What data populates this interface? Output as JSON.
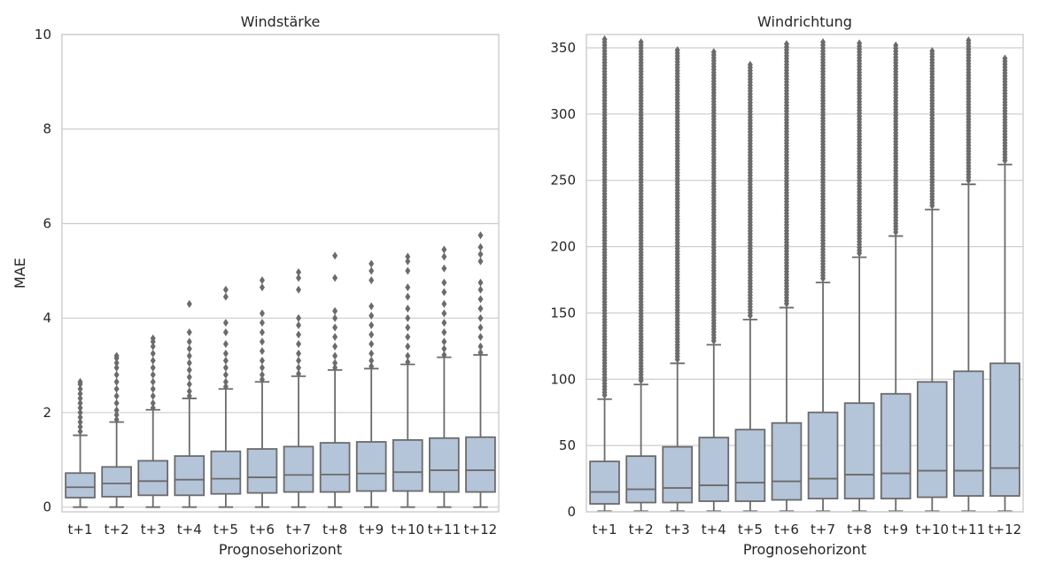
{
  "chart_data": [
    {
      "type": "box",
      "title": "Windstärke",
      "xlabel": "Prognosehorizont",
      "ylabel": "MAE",
      "ylim": [
        -0.1,
        10
      ],
      "yticks": [
        0,
        2,
        4,
        6,
        8,
        10
      ],
      "grid": "horizontal",
      "box_color": "#b4c4d9",
      "line_color": "#6b6b6b",
      "categories": [
        "t+1",
        "t+2",
        "t+3",
        "t+4",
        "t+5",
        "t+6",
        "t+7",
        "t+8",
        "t+9",
        "t+10",
        "t+11",
        "t+12"
      ],
      "boxes": [
        {
          "whislo": 0.0,
          "q1": 0.2,
          "med": 0.42,
          "q3": 0.72,
          "whishi": 1.52,
          "fliers": [
            1.6,
            1.7,
            1.8,
            1.9,
            2.0,
            2.1,
            2.2,
            2.3,
            2.4,
            2.5,
            2.6,
            2.65
          ]
        },
        {
          "whislo": 0.0,
          "q1": 0.22,
          "med": 0.5,
          "q3": 0.85,
          "whishi": 1.8,
          "fliers": [
            1.85,
            1.95,
            2.05,
            2.2,
            2.35,
            2.5,
            2.65,
            2.8,
            2.95,
            3.05,
            3.15,
            3.2
          ]
        },
        {
          "whislo": 0.0,
          "q1": 0.25,
          "med": 0.55,
          "q3": 0.98,
          "whishi": 2.06,
          "fliers": [
            2.1,
            2.2,
            2.35,
            2.5,
            2.65,
            2.8,
            2.95,
            3.1,
            3.25,
            3.4,
            3.5,
            3.57
          ]
        },
        {
          "whislo": 0.0,
          "q1": 0.25,
          "med": 0.58,
          "q3": 1.08,
          "whishi": 2.3,
          "fliers": [
            2.35,
            2.45,
            2.6,
            2.75,
            2.9,
            3.05,
            3.2,
            3.35,
            3.5,
            3.7,
            4.3
          ]
        },
        {
          "whislo": 0.0,
          "q1": 0.28,
          "med": 0.6,
          "q3": 1.18,
          "whishi": 2.5,
          "fliers": [
            2.55,
            2.65,
            2.8,
            2.95,
            3.1,
            3.25,
            3.45,
            3.7,
            3.9,
            4.45,
            4.6
          ]
        },
        {
          "whislo": 0.0,
          "q1": 0.3,
          "med": 0.63,
          "q3": 1.23,
          "whishi": 2.65,
          "fliers": [
            2.7,
            2.8,
            2.95,
            3.1,
            3.3,
            3.5,
            3.7,
            3.9,
            4.1,
            4.65,
            4.8
          ]
        },
        {
          "whislo": 0.0,
          "q1": 0.32,
          "med": 0.68,
          "q3": 1.28,
          "whishi": 2.77,
          "fliers": [
            2.82,
            2.95,
            3.1,
            3.25,
            3.45,
            3.65,
            3.85,
            4.0,
            4.6,
            4.85,
            4.97
          ]
        },
        {
          "whislo": 0.0,
          "q1": 0.32,
          "med": 0.69,
          "q3": 1.36,
          "whishi": 2.9,
          "fliers": [
            2.95,
            3.05,
            3.2,
            3.4,
            3.6,
            3.8,
            4.0,
            4.15,
            4.85,
            5.32
          ]
        },
        {
          "whislo": 0.0,
          "q1": 0.34,
          "med": 0.71,
          "q3": 1.38,
          "whishi": 2.93,
          "fliers": [
            2.98,
            3.1,
            3.25,
            3.45,
            3.65,
            3.85,
            4.05,
            4.25,
            4.8,
            5.0,
            5.15
          ]
        },
        {
          "whislo": 0.0,
          "q1": 0.34,
          "med": 0.74,
          "q3": 1.42,
          "whishi": 3.02,
          "fliers": [
            3.07,
            3.2,
            3.4,
            3.6,
            3.8,
            4.0,
            4.2,
            4.45,
            4.65,
            5.0,
            5.2,
            5.3
          ]
        },
        {
          "whislo": 0.0,
          "q1": 0.32,
          "med": 0.78,
          "q3": 1.46,
          "whishi": 3.17,
          "fliers": [
            3.22,
            3.35,
            3.5,
            3.7,
            3.9,
            4.1,
            4.3,
            4.55,
            4.75,
            5.05,
            5.3,
            5.45
          ]
        },
        {
          "whislo": 0.0,
          "q1": 0.32,
          "med": 0.78,
          "q3": 1.48,
          "whishi": 3.22,
          "fliers": [
            3.27,
            3.4,
            3.6,
            3.8,
            4.0,
            4.2,
            4.4,
            4.6,
            4.75,
            5.2,
            5.35,
            5.5,
            5.75
          ]
        }
      ]
    },
    {
      "type": "box",
      "title": "Windrichtung",
      "xlabel": "Prognosehorizont",
      "ylabel": "",
      "ylim": [
        0,
        360
      ],
      "yticks": [
        0,
        50,
        100,
        150,
        200,
        250,
        300,
        350
      ],
      "grid": "horizontal",
      "box_color": "#b4c4d9",
      "line_color": "#6b6b6b",
      "categories": [
        "t+1",
        "t+2",
        "t+3",
        "t+4",
        "t+5",
        "t+6",
        "t+7",
        "t+8",
        "t+9",
        "t+10",
        "t+11",
        "t+12"
      ],
      "boxes": [
        {
          "whislo": 0.5,
          "q1": 6,
          "med": 15,
          "q3": 38,
          "whishi": 85,
          "fliers_range": [
            88,
            358
          ]
        },
        {
          "whislo": 0.5,
          "q1": 7,
          "med": 17,
          "q3": 42,
          "whishi": 96,
          "fliers_range": [
            99,
            356
          ]
        },
        {
          "whislo": 0.5,
          "q1": 7,
          "med": 18,
          "q3": 49,
          "whishi": 112,
          "fliers_range": [
            115,
            350
          ]
        },
        {
          "whislo": 0.5,
          "q1": 8,
          "med": 20,
          "q3": 56,
          "whishi": 126,
          "fliers_range": [
            129,
            348
          ]
        },
        {
          "whislo": 0.5,
          "q1": 8,
          "med": 22,
          "q3": 62,
          "whishi": 145,
          "fliers_range": [
            148,
            339
          ]
        },
        {
          "whislo": 0.5,
          "q1": 9,
          "med": 23,
          "q3": 67,
          "whishi": 154,
          "fliers_range": [
            157,
            353
          ]
        },
        {
          "whislo": 0.5,
          "q1": 10,
          "med": 25,
          "q3": 75,
          "whishi": 173,
          "fliers_range": [
            176,
            355
          ]
        },
        {
          "whislo": 0.5,
          "q1": 10,
          "med": 28,
          "q3": 82,
          "whishi": 192,
          "fliers_range": [
            195,
            355
          ]
        },
        {
          "whislo": 0.5,
          "q1": 10,
          "med": 29,
          "q3": 89,
          "whishi": 208,
          "fliers_range": [
            211,
            352
          ]
        },
        {
          "whislo": 0.5,
          "q1": 11,
          "med": 31,
          "q3": 98,
          "whishi": 228,
          "fliers_range": [
            231,
            349
          ]
        },
        {
          "whislo": 0.5,
          "q1": 12,
          "med": 31,
          "q3": 106,
          "whishi": 247,
          "fliers_range": [
            250,
            357
          ]
        },
        {
          "whislo": 0.5,
          "q1": 12,
          "med": 33,
          "q3": 112,
          "whishi": 262,
          "fliers_range": [
            265,
            344
          ]
        }
      ]
    }
  ]
}
